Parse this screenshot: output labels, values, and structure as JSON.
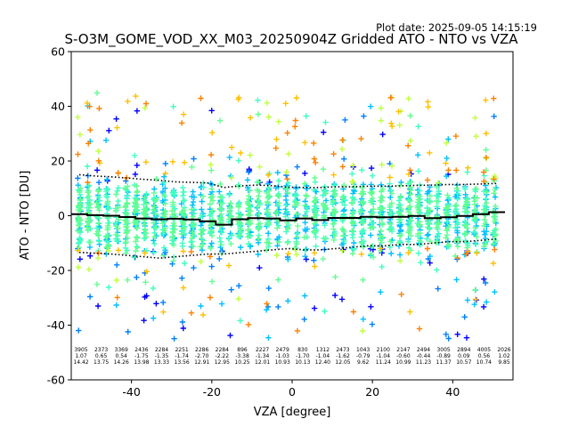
{
  "chart_data": {
    "type": "scatter",
    "plot_date": "Plot date: 2025-09-05 14:15:19",
    "title": "S-O3M_GOME_VOD_XX_M03_20250904Z Gridded ATO - NTO vs VZA",
    "xlabel": "VZA [degree]",
    "ylabel": "ATO - NTO [DU]",
    "xlim": [
      -55,
      55
    ],
    "ylim": [
      -60,
      60
    ],
    "xticks": [
      "-40",
      "-20",
      "0",
      "20",
      "40"
    ],
    "xtick_values": [
      -40,
      -20,
      0,
      20,
      40
    ],
    "yticks": [
      "60",
      "40",
      "20",
      "0",
      "-20",
      "-40",
      "-60"
    ],
    "ytick_values": [
      60,
      40,
      20,
      0,
      -20,
      -40,
      -60
    ],
    "marker": "+",
    "point_colors": [
      "#0000ff",
      "#0080ff",
      "#00c0ff",
      "#40ffc0",
      "#60ff90",
      "#c0ff40",
      "#ffc000",
      "#ff8000"
    ],
    "bin_centers": [
      -53,
      -49,
      -45,
      -41,
      -37,
      -33,
      -29,
      -25,
      -21,
      -17,
      -13,
      -9,
      -5,
      -1,
      3,
      7,
      11,
      15,
      19,
      23,
      27,
      31,
      35,
      39,
      43,
      47,
      51
    ],
    "mean": [
      0.6,
      0.2,
      0.0,
      -0.5,
      -1.0,
      -1.3,
      -1.1,
      -1.4,
      -2.0,
      -3.3,
      -1.3,
      -0.9,
      -1.0,
      -1.7,
      -1.0,
      -1.6,
      -0.8,
      -0.8,
      -0.4,
      -0.6,
      -0.4,
      -0.1,
      -0.9,
      -0.6,
      -0.1,
      0.6,
      1.3
    ],
    "upper_sigma": [
      15.0,
      14.5,
      14.2,
      13.8,
      13.3,
      12.9,
      12.4,
      12.2,
      12.0,
      10.3,
      10.9,
      11.2,
      11.0,
      10.4,
      10.3,
      10.3,
      10.6,
      10.6,
      10.8,
      10.8,
      10.9,
      11.1,
      11.2,
      11.4,
      11.4,
      11.6,
      11.8
    ],
    "lower_sigma": [
      -13.4,
      -13.7,
      -14.0,
      -14.5,
      -15.0,
      -15.5,
      -15.0,
      -14.5,
      -14.0,
      -14.0,
      -13.5,
      -13.0,
      -12.5,
      -12.0,
      -12.5,
      -12.5,
      -12.0,
      -11.5,
      -11.0,
      -11.0,
      -10.5,
      -10.5,
      -10.0,
      -9.5,
      -9.5,
      -9.0,
      -8.5
    ],
    "stats": {
      "counts": [
        "3905",
        "2373",
        "3369",
        "2436",
        "2284",
        "2251",
        "2286",
        "2284",
        "896",
        "2227",
        "2479",
        "830",
        "1312",
        "2473",
        "1043",
        "2100",
        "2147",
        "2494",
        "3005",
        "2894",
        "4005",
        "2026"
      ],
      "means": [
        "1.07",
        "0.65",
        "0.54",
        "-1.75",
        "-1.35",
        "-1.74",
        "-2.70",
        "-2.22",
        "-3.38",
        "-1.34",
        "-1.03",
        "-1.70",
        "-1.04",
        "-1.62",
        "-0.79",
        "-1.04",
        "-0.60",
        "-0.44",
        "-0.89",
        "0.09",
        "0.56",
        "1.02"
      ],
      "stds": [
        "14.42",
        "13.75",
        "14.26",
        "13.98",
        "13.33",
        "13.56",
        "12.91",
        "12.95",
        "10.25",
        "12.01",
        "10.93",
        "10.13",
        "12.40",
        "12.05",
        "9.62",
        "11.24",
        "10.99",
        "11.23",
        "11.37",
        "10.57",
        "10.74",
        "9.85"
      ]
    }
  }
}
